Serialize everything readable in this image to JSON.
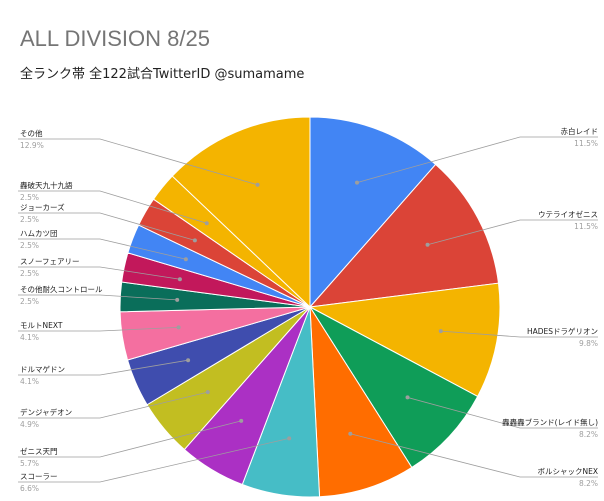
{
  "chart_data": {
    "type": "pie",
    "title": "ALL DIVISION 8/25",
    "subtitle": "全ランク帯 全122試合TwitterID @sumamame",
    "legend": "none",
    "slices": [
      {
        "label": "赤白レイド",
        "pct_label": "11.5%",
        "value": 11.5,
        "color": "#4285f4"
      },
      {
        "label": "ウテライオゼニス",
        "pct_label": "11.5%",
        "value": 11.5,
        "color": "#db4437"
      },
      {
        "label": "HADESドラゲリオン",
        "pct_label": "9.8%",
        "value": 9.8,
        "color": "#f4b400"
      },
      {
        "label": "轟轟轟ブランド(レイド無し)",
        "pct_label": "8.2%",
        "value": 8.2,
        "color": "#0f9d58"
      },
      {
        "label": "ボルシャックNEX",
        "pct_label": "8.2%",
        "value": 8.2,
        "color": "#ff6d00"
      },
      {
        "label": "スコーラー",
        "pct_label": "6.6%",
        "value": 6.6,
        "color": "#46bdc6"
      },
      {
        "label": "ゼニス天門",
        "pct_label": "5.7%",
        "value": 5.7,
        "color": "#ab30c4"
      },
      {
        "label": "デンジャデオン",
        "pct_label": "4.9%",
        "value": 4.9,
        "color": "#c2be21"
      },
      {
        "label": "ドルマゲドン",
        "pct_label": "4.1%",
        "value": 4.1,
        "color": "#3f4dae"
      },
      {
        "label": "モルトNEXT",
        "pct_label": "4.1%",
        "value": 4.1,
        "color": "#f46fa0"
      },
      {
        "label": "その他耐久コントロール",
        "pct_label": "2.5%",
        "value": 2.5,
        "color": "#0a6e5a"
      },
      {
        "label": "スノーフェアリー",
        "pct_label": "2.5%",
        "value": 2.5,
        "color": "#c2185b"
      },
      {
        "label": "ハムカツ団",
        "pct_label": "2.5%",
        "value": 2.5,
        "color": "#4285f4"
      },
      {
        "label": "ジョーカーズ",
        "pct_label": "2.5%",
        "value": 2.5,
        "color": "#db4437"
      },
      {
        "label": "轟破天九十九語",
        "pct_label": "2.5%",
        "value": 2.5,
        "color": "#f4b400"
      },
      {
        "label": "その他",
        "pct_label": "12.9%",
        "value": 12.9,
        "color": "#f4b400"
      }
    ]
  }
}
